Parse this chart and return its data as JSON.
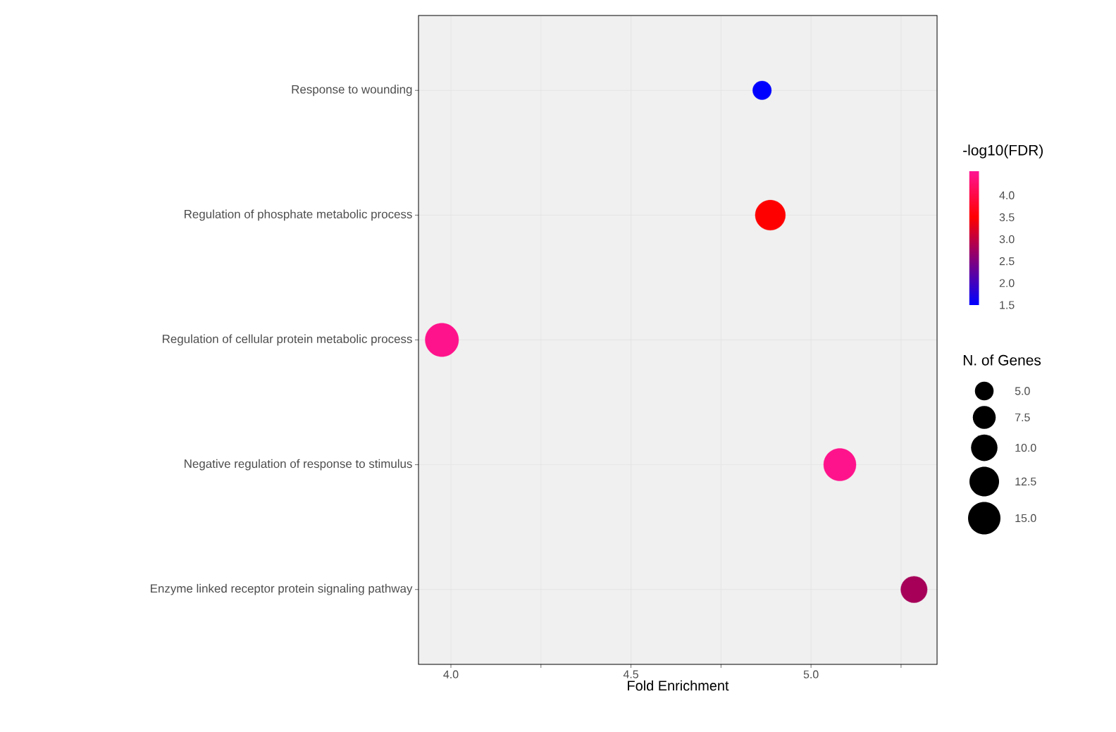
{
  "chart_data": {
    "type": "bubble",
    "orientation": "horizontal",
    "xlabel": "Fold Enrichment",
    "clabel": "-log10(FDR)",
    "legend_title": "N. of Genes",
    "categories": [
      "Response to wounding",
      "Regulation of phosphate metabolic process",
      "Regulation of cellular protein metabolic process",
      "Negative regulation of response to stimulus",
      "Enzyme linked receptor protein signaling pathway"
    ],
    "values": [
      4.864,
      4.887,
      3.975,
      5.08,
      5.286
    ],
    "sizes": [
      5,
      13,
      16,
      15,
      10
    ],
    "cvalues": [
      1.5,
      3.5,
      4.5,
      4.5,
      2.8
    ],
    "size_legend": [
      {
        "value": 5,
        "label": "5.0"
      },
      {
        "value": 7.5,
        "label": "7.5"
      },
      {
        "value": 10,
        "label": "10.0"
      },
      {
        "value": 12.5,
        "label": "12.5"
      },
      {
        "value": 15,
        "label": "15.0"
      }
    ],
    "clim": [
      1.5,
      4.55
    ],
    "cticks": [
      {
        "value": 1.5,
        "label": "1.5"
      },
      {
        "value": 2.0,
        "label": "2.0"
      },
      {
        "value": 2.5,
        "label": "2.5"
      },
      {
        "value": 3.0,
        "label": "3.0"
      },
      {
        "value": 3.5,
        "label": "3.5"
      },
      {
        "value": 4.0,
        "label": "4.0"
      }
    ],
    "xlim": [
      3.91,
      5.35
    ],
    "xticks": [
      {
        "value": 4.0,
        "label": "4.0"
      },
      {
        "value": 4.25,
        "label": null
      },
      {
        "value": 4.5,
        "label": "4.5"
      },
      {
        "value": 4.75,
        "label": null
      },
      {
        "value": 5.0,
        "label": "5.0"
      },
      {
        "value": 5.25,
        "label": null
      }
    ],
    "grid": true
  }
}
